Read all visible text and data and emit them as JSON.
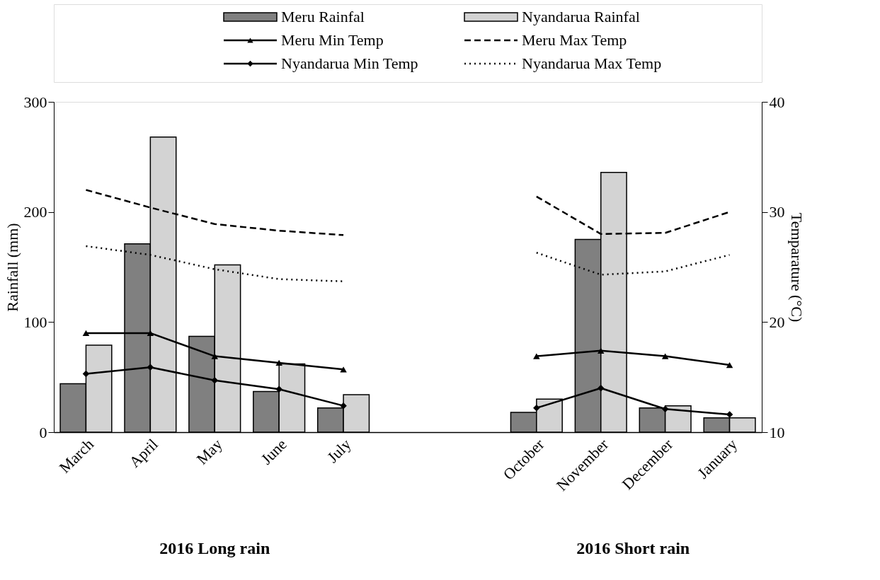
{
  "chart_data": {
    "type": "bar",
    "categories": [
      "March",
      "April",
      "May",
      "June",
      "July",
      null,
      null,
      "October",
      "November",
      "December",
      "January"
    ],
    "ylabel": "Rainfall (mm)",
    "y2label": "Temparature (°C)",
    "ylim": [
      0,
      300
    ],
    "yticks": [
      0,
      100,
      200,
      300
    ],
    "y2lim": [
      10,
      40
    ],
    "y2ticks": [
      10,
      20,
      30,
      40
    ],
    "grid": false,
    "legend": "top",
    "annotations": [
      "2016 Long rain",
      "2016 Short rain"
    ],
    "series": [
      {
        "name": "Meru Rainfal",
        "color": "#808080",
        "values": [
          44,
          171,
          87,
          37,
          22,
          null,
          null,
          18,
          175,
          22,
          13
        ]
      },
      {
        "name": "Nyandarua Rainfal",
        "color": "#d3d3d3",
        "values": [
          79,
          268,
          152,
          62,
          34,
          null,
          null,
          30,
          236,
          24,
          13
        ]
      },
      {
        "name": "Meru Min Temp",
        "type": "line",
        "axis": "y2",
        "color": "#000000",
        "marker": "triangle",
        "line_style": "solid",
        "values": [
          19.0,
          19.0,
          16.9,
          16.3,
          15.7,
          null,
          null,
          16.9,
          17.4,
          16.9,
          16.1
        ]
      },
      {
        "name": "Meru Max Temp",
        "type": "line",
        "axis": "y2",
        "color": "#000000",
        "marker": "none",
        "line_style": "dashed",
        "values": [
          32.0,
          30.4,
          28.9,
          28.3,
          27.9,
          null,
          null,
          31.4,
          28.0,
          28.1,
          30.0
        ]
      },
      {
        "name": "Nyandarua Min Temp",
        "type": "line",
        "axis": "y2",
        "color": "#000000",
        "marker": "diamond",
        "line_style": "solid",
        "values": [
          15.3,
          15.9,
          14.7,
          13.9,
          12.4,
          null,
          null,
          12.2,
          14.0,
          12.1,
          11.6
        ]
      },
      {
        "name": "Nyandarua Max Temp",
        "type": "line",
        "axis": "y2",
        "color": "#000000",
        "marker": "none",
        "line_style": "dotted",
        "values": [
          26.9,
          26.1,
          24.8,
          23.9,
          23.7,
          null,
          null,
          26.3,
          24.3,
          24.6,
          26.1
        ]
      }
    ]
  }
}
